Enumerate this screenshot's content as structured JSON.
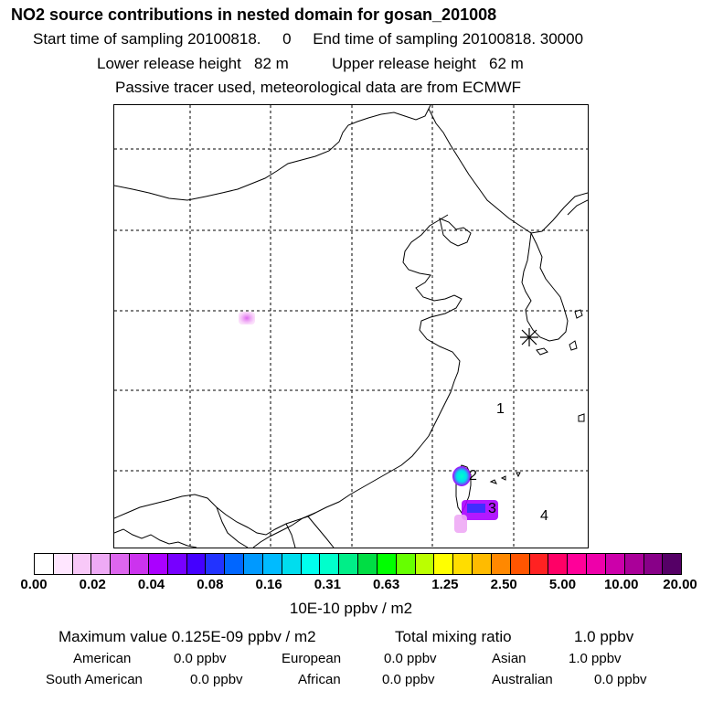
{
  "header": {
    "title": "NO2 source contributions in nested domain for gosan_201008",
    "start_label": "Start time of sampling",
    "start_value": "20100818.     0",
    "end_label": "End time of sampling",
    "end_value": "20100818. 30000",
    "lower_label": "Lower release height",
    "lower_value": "82 m",
    "upper_label": "Upper release height",
    "upper_value": "62 m",
    "tracer_note": "Passive tracer used, meteorological data are from ECMWF"
  },
  "map": {
    "markers": [
      "1",
      "2",
      "3",
      "4"
    ],
    "station_icon": "asterisk-station-icon"
  },
  "colorbar": {
    "colors": [
      "#ffffff",
      "#ffe6ff",
      "#f8c8f8",
      "#eeaaf5",
      "#dd66ee",
      "#cc33ee",
      "#aa00ff",
      "#7700ff",
      "#4400ff",
      "#2233ff",
      "#0066ff",
      "#0099ff",
      "#00bbff",
      "#00ddee",
      "#00ffee",
      "#00ffcc",
      "#00ee88",
      "#00dd44",
      "#00ff00",
      "#66ff00",
      "#bbff00",
      "#ffff00",
      "#ffdd00",
      "#ffbb00",
      "#ff8800",
      "#ff5500",
      "#ff2222",
      "#ff0066",
      "#ff0099",
      "#ee00aa",
      "#cc00aa",
      "#aa0099",
      "#880088",
      "#550066"
    ],
    "tick_labels": [
      "0.00",
      "0.02",
      "0.04",
      "0.08",
      "0.16",
      "0.31",
      "0.63",
      "1.25",
      "2.50",
      "5.00",
      "10.00",
      "20.00"
    ],
    "units": "10E-10 ppbv / m2"
  },
  "summary": {
    "max_label": "Maximum value",
    "max_value": "0.125E-09 ppbv / m2",
    "total_label": "Total mixing ratio",
    "total_value": "1.0 ppbv",
    "regions": [
      {
        "name": "American",
        "value": "0.0 ppbv"
      },
      {
        "name": "European",
        "value": "0.0 ppbv"
      },
      {
        "name": "Asian",
        "value": "1.0 ppbv"
      },
      {
        "name": "South American",
        "value": "0.0 ppbv"
      },
      {
        "name": "African",
        "value": "0.0 ppbv"
      },
      {
        "name": "Australian",
        "value": "0.0 ppbv"
      }
    ]
  }
}
